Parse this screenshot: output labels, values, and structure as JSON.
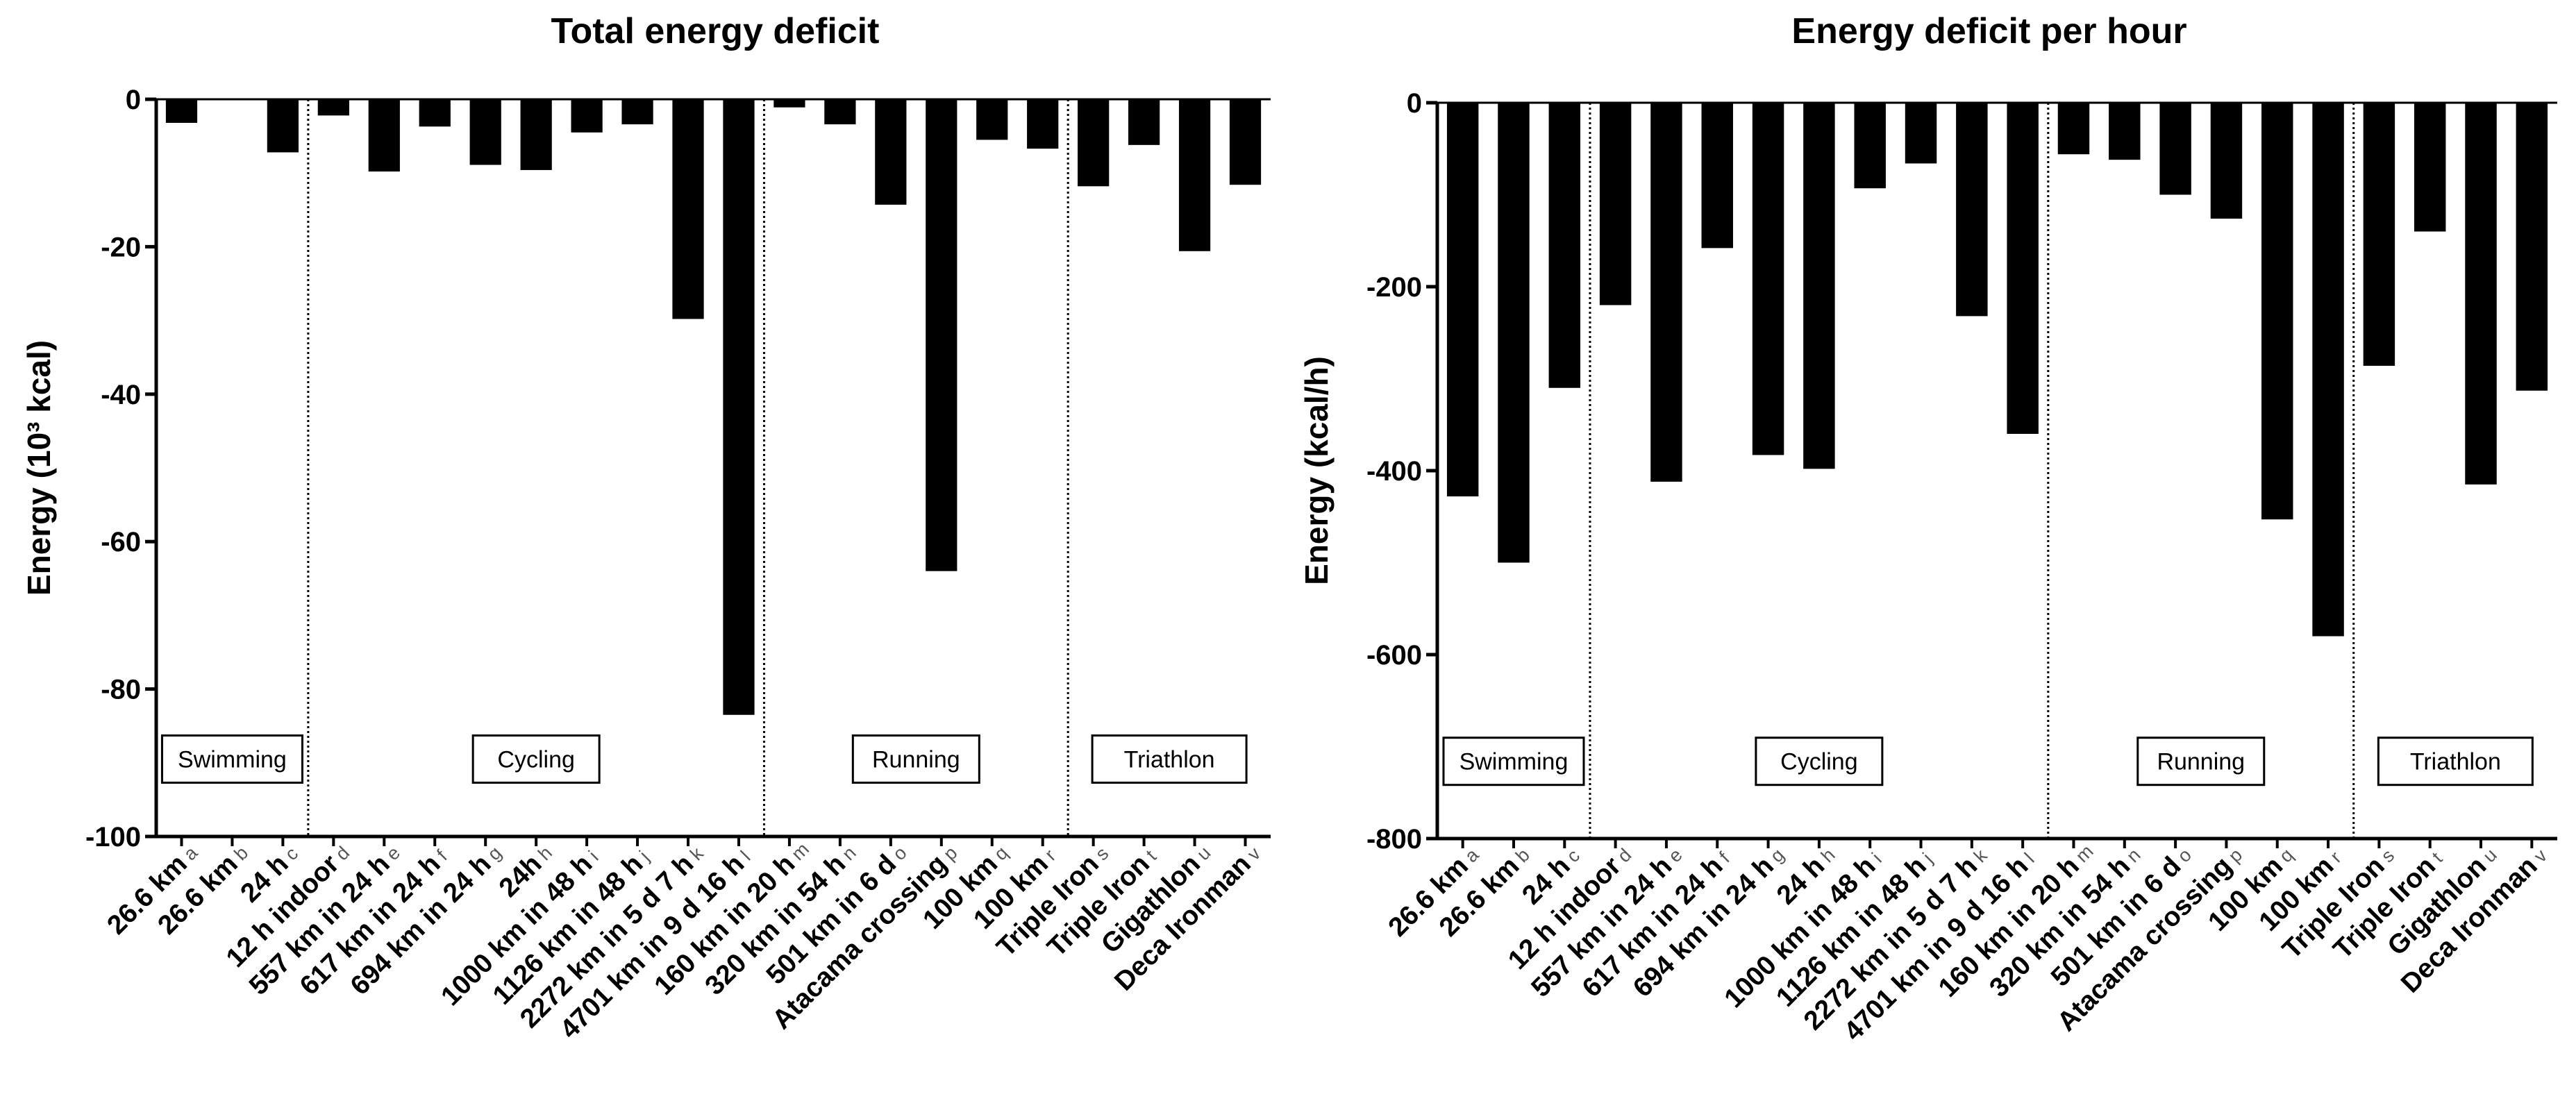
{
  "chart_data": [
    {
      "type": "bar",
      "title": "Total energy deficit",
      "xlabel": "",
      "ylabel": "Energy (10³ kcal)",
      "ylim": [
        -100,
        0
      ],
      "yticks": [
        "0",
        "-20",
        "-40",
        "-60",
        "-80",
        "-100"
      ],
      "ytick_values": [
        0,
        -20,
        -40,
        -60,
        -80,
        -100
      ],
      "categories": [
        "26.6 km",
        "26.6 km",
        "24 h",
        "12 h indoor",
        "557 km in 24 h",
        "617 km in 24 h",
        "694 km in 24 h",
        "24h",
        "1000 km in 48 h",
        "1126 km in 48 h",
        "2272 km in 5 d 7 h",
        "4701 km in 9 d 16 h",
        "160 km in 20 h",
        "320 km in 54 h",
        "501 km in 6 d",
        "Atacama crossing",
        "100 km",
        "100 km",
        "Triple Iron",
        "Triple Iron",
        "Gigathlon",
        "Deca Ironman"
      ],
      "superscripts": [
        "a",
        "b",
        "c",
        "d",
        "e",
        "f",
        "g",
        "h",
        "i",
        "j",
        "k",
        "l",
        "m",
        "n",
        "o",
        "p",
        "q",
        "r",
        "s",
        "t",
        "u",
        "v"
      ],
      "values": [
        -3.2,
        0,
        -7.2,
        -2.2,
        -9.8,
        -3.7,
        -8.9,
        -9.6,
        -4.5,
        -3.4,
        -29.8,
        -83.5,
        -1.1,
        -3.4,
        -14.3,
        -64.0,
        -5.5,
        -6.7,
        -11.8,
        -6.2,
        -20.6,
        -11.6
      ],
      "groups": [
        {
          "label": "Swimming",
          "start": 0,
          "end": 2
        },
        {
          "label": "Cycling",
          "start": 3,
          "end": 11
        },
        {
          "label": "Running",
          "start": 12,
          "end": 17
        },
        {
          "label": "Triathlon",
          "start": 18,
          "end": 21
        }
      ],
      "bar_color": "#000000",
      "grid": false
    },
    {
      "type": "bar",
      "title": "Energy deficit per hour",
      "xlabel": "",
      "ylabel": "Energy (kcal/h)",
      "ylim": [
        -800,
        0
      ],
      "yticks": [
        "0",
        "-200",
        "-400",
        "-600",
        "-800"
      ],
      "ytick_values": [
        0,
        -200,
        -400,
        -600,
        -800
      ],
      "categories": [
        "26.6 km",
        "26.6 km",
        "24 h",
        "12 h indoor",
        "557 km in 24 h",
        "617 km in 24 h",
        "694 km in 24 h",
        "24 h",
        "1000 km in 48 h",
        "1126 km in 48 h",
        "2272 km in 5 d 7 h",
        "4701 km in 9 d 16 h",
        "160 km in 20 h",
        "320 km in 54 h",
        "501 km in 6 d",
        "Atacama crossing",
        "100 km",
        "100 km",
        "Triple Iron",
        "Triple Iron",
        "Gigathlon",
        "Deca Ironman"
      ],
      "superscripts": [
        "a",
        "b",
        "c",
        "d",
        "e",
        "f",
        "g",
        "h",
        "i",
        "j",
        "k",
        "l",
        "m",
        "n",
        "o",
        "p",
        "q",
        "r",
        "s",
        "t",
        "u",
        "v"
      ],
      "values": [
        -428,
        -500,
        -310,
        -220,
        -412,
        -158,
        -383,
        -398,
        -93,
        -66,
        -232,
        -360,
        -56,
        -62,
        -100,
        -126,
        -453,
        -580,
        -286,
        -140,
        -415,
        -313
      ],
      "groups": [
        {
          "label": "Swimming",
          "start": 0,
          "end": 2
        },
        {
          "label": "Cycling",
          "start": 3,
          "end": 11
        },
        {
          "label": "Running",
          "start": 12,
          "end": 17
        },
        {
          "label": "Triathlon",
          "start": 18,
          "end": 21
        }
      ],
      "bar_color": "#000000",
      "grid": false
    }
  ]
}
